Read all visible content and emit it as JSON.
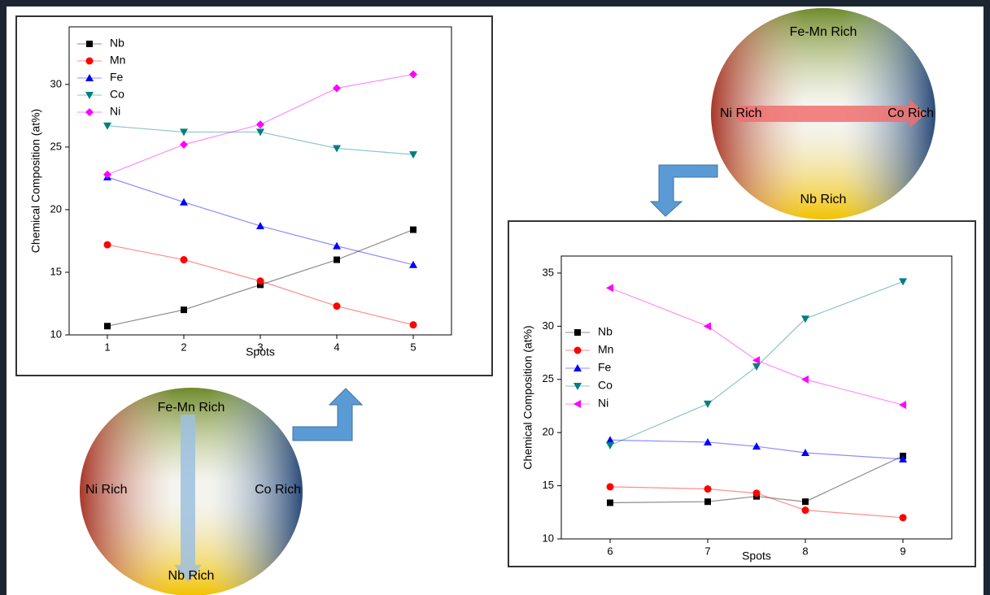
{
  "chart_data": [
    {
      "type": "line",
      "x_label": "Spots",
      "y_label": "Chemical Composition (at%)",
      "x": [
        1,
        2,
        3,
        4,
        5
      ],
      "xlim": [
        0.5,
        5.5
      ],
      "xticks": [
        1,
        2,
        3,
        4,
        5
      ],
      "ylim": [
        10,
        34.6
      ],
      "yticks": [
        10,
        15,
        20,
        25,
        30
      ],
      "legend": "upper left",
      "series": [
        {
          "name": "Nb",
          "color": "#000000",
          "marker": "square",
          "values": [
            10.7,
            12.0,
            14.0,
            16.0,
            18.4
          ]
        },
        {
          "name": "Mn",
          "color": "#ff0000",
          "marker": "circle",
          "values": [
            17.2,
            16.0,
            14.3,
            12.3,
            10.8
          ]
        },
        {
          "name": "Fe",
          "color": "#0000ff",
          "marker": "triangle-up",
          "values": [
            22.6,
            20.6,
            18.7,
            17.1,
            15.6
          ]
        },
        {
          "name": "Co",
          "color": "#007f7f",
          "marker": "triangle-down",
          "values": [
            26.7,
            26.2,
            26.2,
            24.9,
            24.4
          ]
        },
        {
          "name": "Ni",
          "color": "#ff00ff",
          "marker": "diamond",
          "values": [
            22.8,
            25.2,
            26.8,
            29.7,
            30.8
          ]
        }
      ]
    },
    {
      "type": "line",
      "x_label": "Spots",
      "y_label": "Chemical Composition (at%)",
      "x": [
        6,
        7,
        7.5,
        8,
        9
      ],
      "xlim": [
        5.5,
        9.5
      ],
      "xticks": [
        6,
        7,
        8,
        9
      ],
      "ylim": [
        10,
        36.6
      ],
      "yticks": [
        10,
        15,
        20,
        25,
        30,
        35
      ],
      "legend": "center left",
      "series": [
        {
          "name": "Nb",
          "color": "#000000",
          "marker": "square",
          "values": [
            13.4,
            13.5,
            14.0,
            13.5,
            17.8
          ]
        },
        {
          "name": "Mn",
          "color": "#ff0000",
          "marker": "circle",
          "values": [
            14.9,
            14.7,
            14.3,
            12.7,
            12.0
          ]
        },
        {
          "name": "Fe",
          "color": "#0000ff",
          "marker": "triangle-up",
          "values": [
            19.3,
            19.1,
            18.7,
            18.1,
            17.5
          ]
        },
        {
          "name": "Co",
          "color": "#007f7f",
          "marker": "triangle-down",
          "values": [
            18.8,
            22.7,
            26.2,
            30.7,
            34.2
          ]
        },
        {
          "name": "Ni",
          "color": "#ff00ff",
          "marker": "triangle-left",
          "values": [
            33.6,
            30.0,
            26.8,
            25.0,
            22.6
          ]
        }
      ]
    }
  ],
  "diagrams": [
    {
      "top": "Fe-Mn Rich",
      "left": "Ni Rich",
      "right": "Co Rich",
      "bottom": "Nb Rich"
    },
    {
      "top": "Fe-Mn Rich",
      "left": "Ni Rich",
      "right": "Co Rich",
      "bottom": "Nb Rich"
    }
  ]
}
